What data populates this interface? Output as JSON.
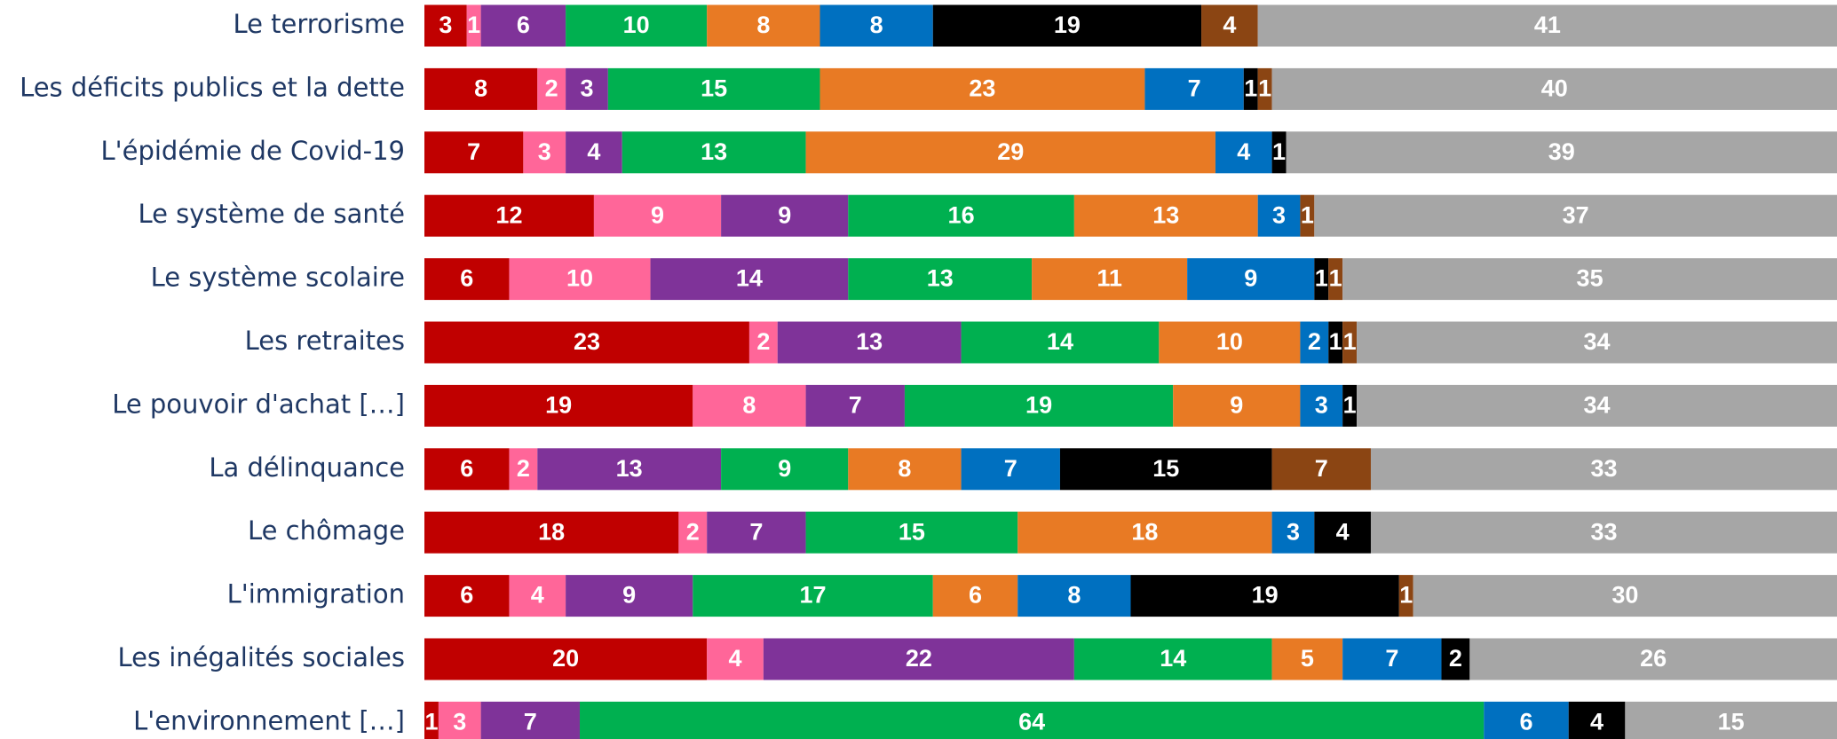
{
  "chart_data": {
    "type": "stacked-barh",
    "categories": [
      "Le terrorisme",
      "Les déficits publics et la dette",
      "L'épidémie de Covid-19",
      "Le système de santé",
      "Le système scolaire",
      "Les retraites",
      "Le pouvoir d'achat […]",
      "La délinquance",
      "Le chômage",
      "L'immigration",
      "Les inégalités sociales",
      "L'environnement […]"
    ],
    "xlim": [
      0,
      100
    ],
    "series": [
      {
        "color": "#c00000",
        "values": [
          3,
          8,
          7,
          12,
          6,
          23,
          19,
          6,
          18,
          6,
          20,
          1
        ]
      },
      {
        "color": "#ff6699",
        "values": [
          1,
          2,
          3,
          9,
          10,
          2,
          8,
          2,
          2,
          4,
          4,
          3
        ]
      },
      {
        "color": "#7f3399",
        "values": [
          6,
          3,
          4,
          9,
          14,
          13,
          7,
          13,
          7,
          9,
          22,
          7
        ]
      },
      {
        "color": "#00b050",
        "values": [
          10,
          15,
          13,
          16,
          13,
          14,
          19,
          9,
          15,
          17,
          14,
          64
        ]
      },
      {
        "color": "#e87a24",
        "values": [
          8,
          23,
          29,
          13,
          11,
          10,
          9,
          8,
          18,
          6,
          5,
          null
        ]
      },
      {
        "color": "#0070c0",
        "values": [
          8,
          7,
          4,
          3,
          9,
          2,
          3,
          7,
          3,
          8,
          7,
          6
        ]
      },
      {
        "color": "#000000",
        "values": [
          19,
          1,
          1,
          null,
          1,
          1,
          1,
          15,
          4,
          19,
          2,
          4
        ]
      },
      {
        "color": "#8b4513",
        "values": [
          4,
          1,
          null,
          1,
          1,
          1,
          null,
          7,
          null,
          1,
          null,
          null
        ]
      },
      {
        "color": "#a6a6a6",
        "values": [
          41,
          40,
          39,
          37,
          35,
          34,
          34,
          33,
          33,
          30,
          26,
          15
        ]
      }
    ]
  }
}
